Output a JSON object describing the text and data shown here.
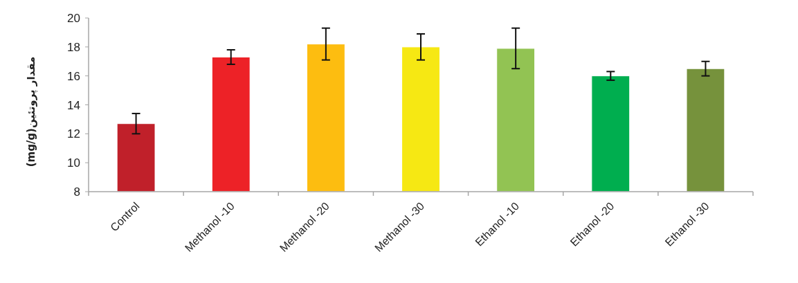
{
  "chart_data": {
    "type": "bar",
    "ylabel": "مقدار پروتئین(mg/g)",
    "categories": [
      "Control",
      "Methanol -10",
      "Methanol -20",
      "Methanol -30",
      "Ethanol -10",
      "Ethanol -20",
      "Ethanol -30"
    ],
    "values": [
      12.7,
      17.3,
      18.2,
      18.0,
      17.9,
      16.0,
      16.5
    ],
    "errors": [
      0.7,
      0.5,
      1.1,
      0.9,
      1.4,
      0.3,
      0.5
    ],
    "colors": [
      "#c0202a",
      "#ed2227",
      "#fdbd10",
      "#f6e813",
      "#92c353",
      "#00ae4f",
      "#76923c"
    ],
    "ylim": [
      8,
      20
    ],
    "yticks": [
      8,
      10,
      12,
      14,
      16,
      18,
      20
    ],
    "grid": false
  }
}
